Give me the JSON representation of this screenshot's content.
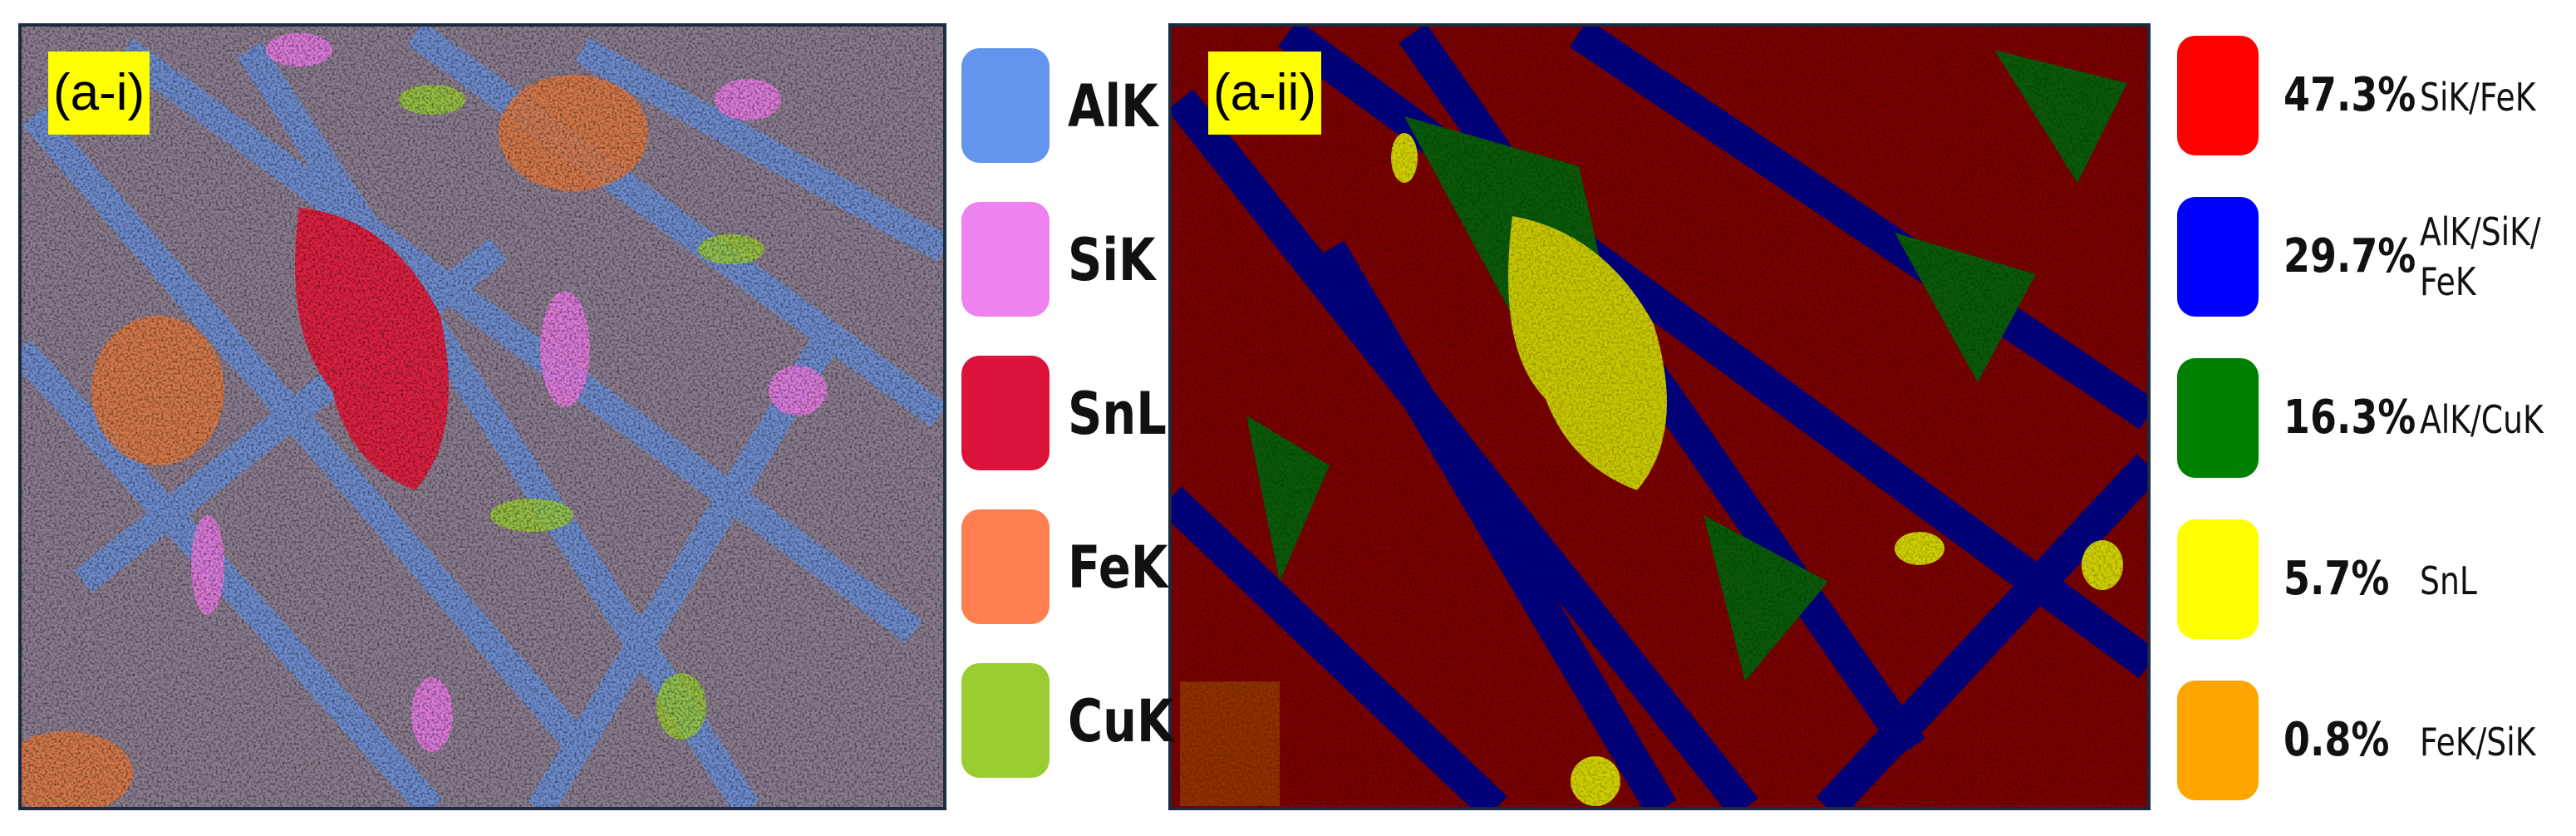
{
  "panels": [
    {
      "label": "(a-i)",
      "legend": [
        {
          "label": "AlK",
          "color": "#6495ed"
        },
        {
          "label": "SiK",
          "color": "#ee82ee"
        },
        {
          "label": "SnL",
          "color": "#dc143c"
        },
        {
          "label": "FeK",
          "color": "#ff7f50"
        },
        {
          "label": "CuK",
          "color": "#9acd32"
        }
      ]
    },
    {
      "label": "(a-ii)",
      "legend": [
        {
          "percent": "47.3%",
          "label": "SiK/FeK",
          "color": "#ff0000"
        },
        {
          "percent": "29.7%",
          "label": "AlK/SiK/\nFeK",
          "color": "#0000ff"
        },
        {
          "percent": "16.3%",
          "label": "AlK/CuK",
          "color": "#008000"
        },
        {
          "percent": "5.7%",
          "label": "SnL",
          "color": "#ffff00"
        },
        {
          "percent": "0.8%",
          "label": "FeK/SiK",
          "color": "#ffa500"
        }
      ]
    }
  ]
}
